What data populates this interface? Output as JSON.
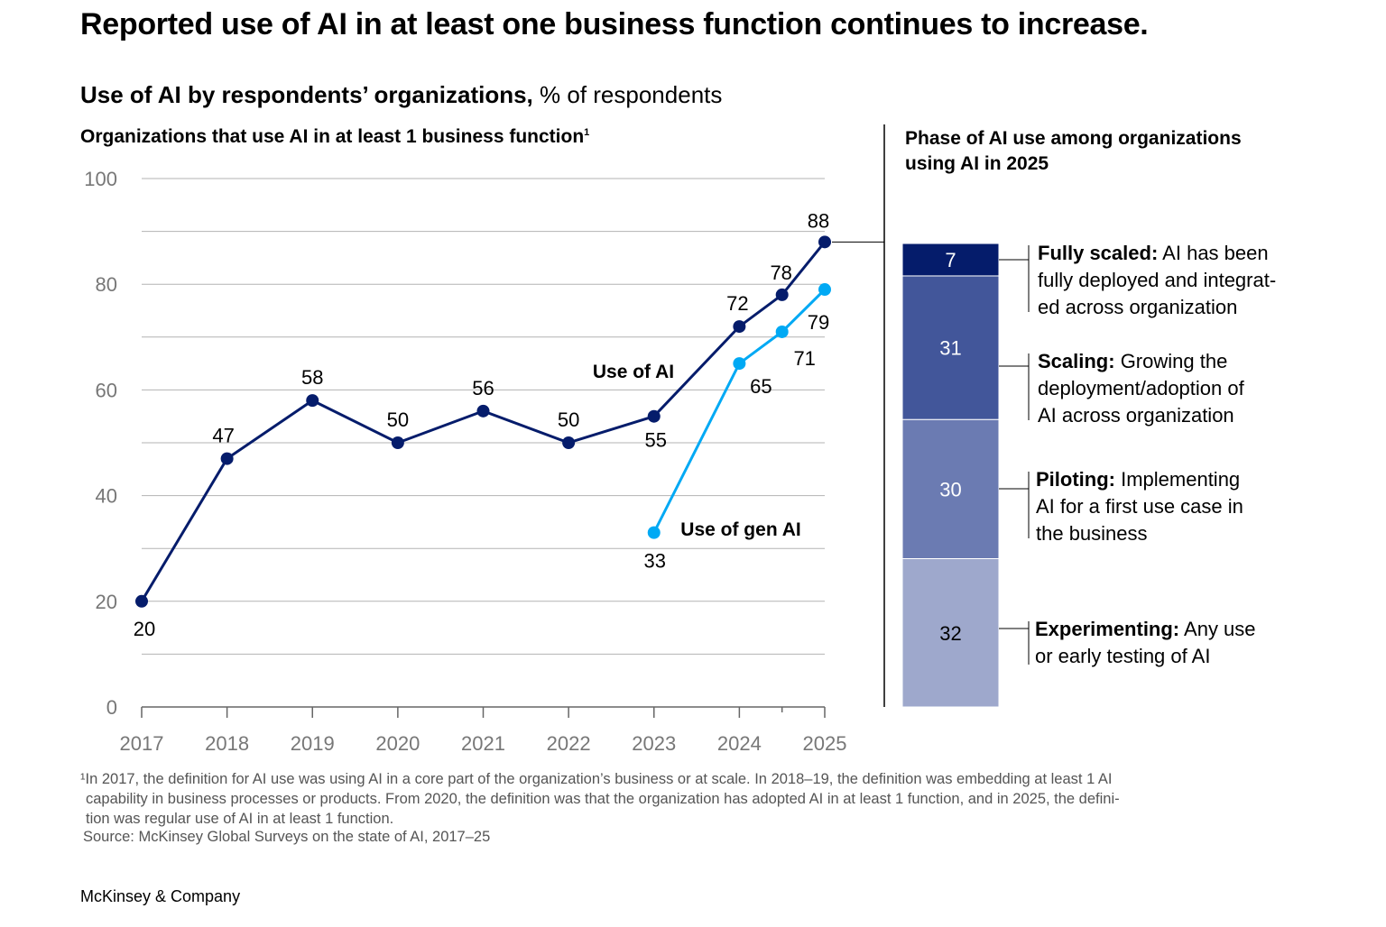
{
  "title": "Reported use of AI in at least one business function continues to increase.",
  "subtitle": {
    "bold": "Use of AI by respondents’ organizations,",
    "rest": " % of respondents"
  },
  "left_header": {
    "text": "Organizations that use AI in at least 1 business function",
    "footnote_mark": "1"
  },
  "right_header": "Phase of AI use among organizations using AI in 2025",
  "phases": [
    {
      "bold": "Fully scaled:",
      "lines": [
        " AI has been",
        "fully deployed and integrat-",
        "ed across organization"
      ]
    },
    {
      "bold": "Scaling:",
      "lines": [
        " Growing the",
        "deployment/adoption of",
        "AI across organization"
      ]
    },
    {
      "bold": "Piloting:",
      "lines": [
        " Implementing",
        "AI for a first use case in",
        "the business"
      ]
    },
    {
      "bold": "Experimenting:",
      "lines": [
        " Any use",
        "or early testing of AI"
      ]
    }
  ],
  "footnote": [
    "¹In 2017, the definition for AI use was using AI in a core part of the organization’s business or at scale. In 2018–19, the definition was embedding at least 1 AI",
    "capability in business processes or products. From 2020, the definition was that the organization has adopted AI in at least 1 function, and in 2025, the defini-",
    "tion was regular use of AI in at least 1 function."
  ],
  "source": "Source: McKinsey Global Surveys on the state of AI, 2017–25",
  "brand": "McKinsey & Company",
  "colors": {
    "ai": "#051c6b",
    "gen_ai": "#00a9f4",
    "grid": "#b3b3b3",
    "axis_text": "#777777"
  },
  "chart_data": [
    {
      "type": "line",
      "title": "Organizations that use AI in at least 1 business function",
      "x_ticks": [
        "2017",
        "2018",
        "2019",
        "2020",
        "2021",
        "2022",
        "2023",
        "2024",
        "2025"
      ],
      "ylim": [
        0,
        100
      ],
      "y_ticks": [
        0,
        20,
        40,
        60,
        80,
        100
      ],
      "grid": true,
      "series": [
        {
          "name": "Use of AI",
          "color": "#051c6b",
          "points": [
            {
              "x": 2017,
              "y": 20,
              "label": "20"
            },
            {
              "x": 2018,
              "y": 47,
              "label": "47"
            },
            {
              "x": 2019,
              "y": 58,
              "label": "58"
            },
            {
              "x": 2020,
              "y": 50,
              "label": "50"
            },
            {
              "x": 2021,
              "y": 56,
              "label": "56"
            },
            {
              "x": 2022,
              "y": 50,
              "label": "50"
            },
            {
              "x": 2023,
              "y": 55,
              "label": "55"
            },
            {
              "x": 2024,
              "y": 72,
              "label": "72"
            },
            {
              "x": 2024.5,
              "y": 78,
              "label": "78"
            },
            {
              "x": 2025,
              "y": 88,
              "label": "88"
            }
          ]
        },
        {
          "name": "Use of gen AI",
          "color": "#00a9f4",
          "points": [
            {
              "x": 2023,
              "y": 33,
              "label": "33"
            },
            {
              "x": 2024,
              "y": 65,
              "label": "65"
            },
            {
              "x": 2024.5,
              "y": 71,
              "label": "71"
            },
            {
              "x": 2025,
              "y": 79,
              "label": "79"
            }
          ]
        }
      ]
    },
    {
      "type": "bar",
      "stacked": true,
      "title": "Phase of AI use among organizations using AI in 2025",
      "segments": [
        {
          "name": "Fully scaled",
          "value": 7,
          "color": "#051c6b",
          "label_color": "#ffffff"
        },
        {
          "name": "Scaling",
          "value": 31,
          "color": "#42569a",
          "label_color": "#ffffff"
        },
        {
          "name": "Piloting",
          "value": 30,
          "color": "#6b7bb2",
          "label_color": "#ffffff"
        },
        {
          "name": "Experimenting",
          "value": 32,
          "color": "#9ea8cc",
          "label_color": "#000000"
        }
      ]
    }
  ]
}
